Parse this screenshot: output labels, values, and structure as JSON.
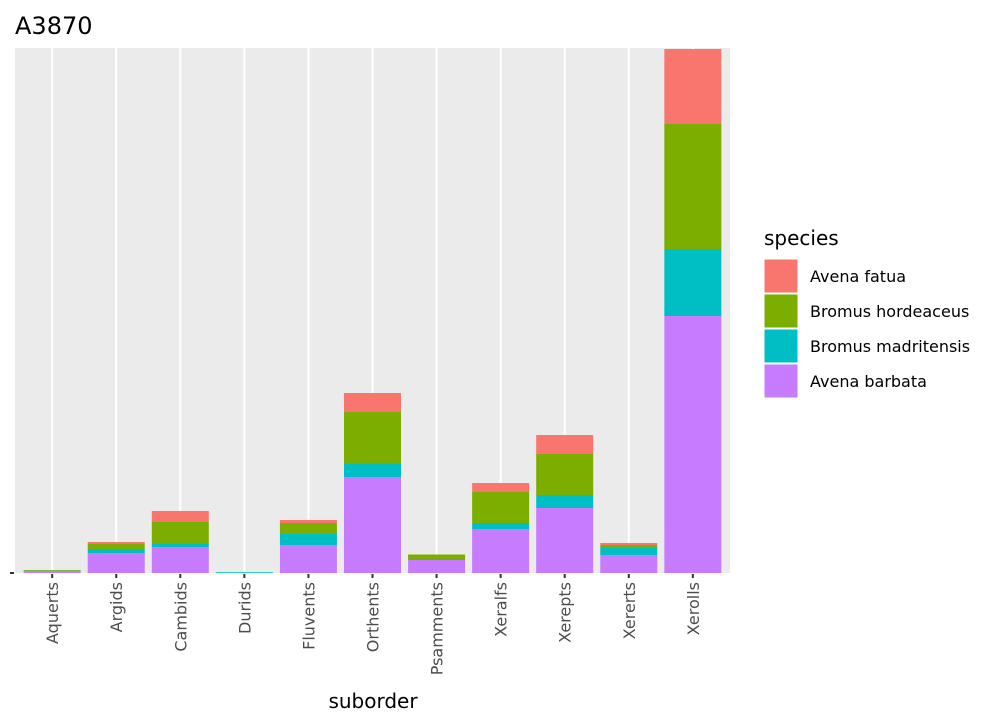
{
  "chart_data": {
    "type": "bar",
    "stacked": true,
    "title": "A3870",
    "xlabel": "suborder",
    "ylabel": "",
    "ylim": [
      0,
      525
    ],
    "legend_title": "species",
    "legend_position": "right",
    "categories": [
      "Aquerts",
      "Argids",
      "Cambids",
      "Durids",
      "Fluvents",
      "Orthents",
      "Psamments",
      "Xeralfs",
      "Xerepts",
      "Xererts",
      "Xerolls"
    ],
    "series": [
      {
        "name": "Avena barbata",
        "color": "#C77CFF",
        "values": [
          2,
          20,
          26,
          0,
          28,
          96,
          13,
          44,
          65,
          18,
          257
        ]
      },
      {
        "name": "Bromus madritensis",
        "color": "#00BFC4",
        "values": [
          0.3,
          4,
          3,
          0.8,
          11,
          13,
          0.5,
          6,
          13,
          7,
          67
        ]
      },
      {
        "name": "Bromus hordeaceus",
        "color": "#7CAE00",
        "values": [
          0.7,
          5,
          22,
          0,
          11,
          52,
          5,
          31,
          41,
          3,
          125
        ]
      },
      {
        "name": "Avena fatua",
        "color": "#F8766D",
        "values": [
          0,
          2,
          11,
          0,
          3,
          19,
          0,
          9,
          19,
          2,
          75
        ]
      }
    ],
    "legend_order": [
      "Avena fatua",
      "Bromus hordeaceus",
      "Bromus madritensis",
      "Avena barbata"
    ]
  }
}
